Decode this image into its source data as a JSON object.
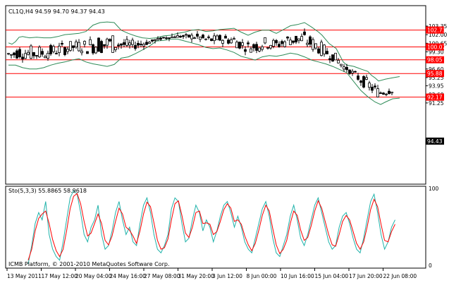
{
  "main_chart": {
    "header": "CL1Q,H4  94.59 94.70 94.37 94.43",
    "price_ticks": [
      "103.35",
      "102.00",
      "100.65",
      "99.30",
      "97.95",
      "96.60",
      "95.25",
      "93.95",
      "92.60",
      "91.25"
    ],
    "level_tags": [
      "102.73",
      "100.07",
      "98.05",
      "95.88",
      "92.17"
    ],
    "current_price": "94.43",
    "colors": {
      "background": "#ffffff",
      "candle": "#000000",
      "bands": "#2e8b57",
      "levels": "#ff0000",
      "level_tag_bg": "#ff0000",
      "current_tag_bg": "#000000"
    }
  },
  "oscillator": {
    "header": "Sto(5,3,3) 55.8865 58.9618",
    "ticks": [
      "100",
      "0"
    ],
    "colors": {
      "main_line": "#20b2aa",
      "signal_line": "#ff0000"
    }
  },
  "time_axis": [
    "13 May 2011",
    "17 May 12:00",
    "20 May 04:00",
    "24 May 16:00",
    "27 May 08:00",
    "31 May 20:00",
    "3 Jun 12:00",
    "8 Jun 00:00",
    "10 Jun 16:00",
    "15 Jun 04:00",
    "17 Jun 20:00",
    "22 Jun 08:00"
  ],
  "watermark": "ICMB Platform, © 2001-2010 MetaQuotes Software Corp.",
  "chart_data": {
    "type": "candlestick",
    "instrument": "CL1Q",
    "timeframe": "H4",
    "last_bar": {
      "open": 94.59,
      "high": 94.7,
      "low": 94.37,
      "close": 94.43
    },
    "price_range": [
      90.7,
      104.2
    ],
    "horizontal_levels": [
      102.73,
      100.07,
      98.05,
      95.88,
      92.17
    ],
    "upper_band": [
      [
        0,
        100.7
      ],
      [
        5,
        100.5
      ],
      [
        10,
        100.9
      ],
      [
        15,
        101.6
      ],
      [
        20,
        101.7
      ],
      [
        25,
        101.6
      ],
      [
        30,
        101.5
      ],
      [
        40,
        101.6
      ],
      [
        50,
        101.5
      ],
      [
        60,
        101.5
      ],
      [
        70,
        101.7
      ],
      [
        80,
        102.0
      ],
      [
        90,
        102.1
      ],
      [
        100,
        102.2
      ],
      [
        110,
        102.5
      ],
      [
        120,
        103.5
      ],
      [
        130,
        103.9
      ],
      [
        140,
        104.0
      ],
      [
        150,
        103.9
      ],
      [
        160,
        102.7
      ],
      [
        170,
        102.2
      ],
      [
        180,
        101.8
      ],
      [
        190,
        101.5
      ],
      [
        200,
        101.4
      ],
      [
        210,
        101.5
      ],
      [
        220,
        101.8
      ],
      [
        230,
        101.9
      ],
      [
        240,
        102.2
      ],
      [
        250,
        102.4
      ],
      [
        260,
        102.7
      ],
      [
        270,
        102.8
      ],
      [
        280,
        102.5
      ],
      [
        290,
        102.6
      ],
      [
        300,
        102.8
      ],
      [
        310,
        102.9
      ],
      [
        320,
        103.0
      ],
      [
        330,
        102.4
      ],
      [
        340,
        101.9
      ],
      [
        350,
        102.4
      ],
      [
        360,
        102.7
      ],
      [
        370,
        102.7
      ],
      [
        380,
        102.2
      ],
      [
        390,
        102.8
      ],
      [
        400,
        103.4
      ],
      [
        410,
        103.6
      ],
      [
        420,
        103.9
      ],
      [
        430,
        103.2
      ],
      [
        440,
        102.4
      ],
      [
        445,
        101.9
      ],
      [
        455,
        100.6
      ],
      [
        465,
        99.8
      ],
      [
        475,
        97.7
      ],
      [
        480,
        97.2
      ],
      [
        490,
        97.0
      ],
      [
        500,
        96.6
      ],
      [
        510,
        96.2
      ],
      [
        515,
        95.6
      ],
      [
        520,
        95.2
      ],
      [
        525,
        94.7
      ],
      [
        535,
        95.0
      ],
      [
        545,
        95.2
      ],
      [
        555,
        95.4
      ]
    ],
    "lower_band": [
      [
        0,
        97.2
      ],
      [
        10,
        97.2
      ],
      [
        20,
        96.8
      ],
      [
        30,
        96.6
      ],
      [
        40,
        96.6
      ],
      [
        50,
        96.8
      ],
      [
        60,
        97.2
      ],
      [
        70,
        97.5
      ],
      [
        80,
        97.7
      ],
      [
        90,
        98.0
      ],
      [
        100,
        98.2
      ],
      [
        110,
        97.7
      ],
      [
        120,
        97.4
      ],
      [
        130,
        97.2
      ],
      [
        140,
        97.0
      ],
      [
        150,
        97.3
      ],
      [
        160,
        98.3
      ],
      [
        170,
        98.5
      ],
      [
        180,
        99.0
      ],
      [
        190,
        99.6
      ],
      [
        200,
        100.2
      ],
      [
        210,
        101.0
      ],
      [
        220,
        101.1
      ],
      [
        230,
        101.3
      ],
      [
        240,
        101.3
      ],
      [
        250,
        101.0
      ],
      [
        260,
        100.7
      ],
      [
        270,
        100.4
      ],
      [
        280,
        100.0
      ],
      [
        290,
        99.8
      ],
      [
        300,
        99.9
      ],
      [
        310,
        99.6
      ],
      [
        320,
        99.2
      ],
      [
        330,
        98.6
      ],
      [
        340,
        98.3
      ],
      [
        350,
        98.0
      ],
      [
        360,
        98.5
      ],
      [
        370,
        98.7
      ],
      [
        380,
        98.6
      ],
      [
        390,
        98.8
      ],
      [
        400,
        99.1
      ],
      [
        410,
        98.9
      ],
      [
        420,
        98.5
      ],
      [
        430,
        98.0
      ],
      [
        440,
        97.7
      ],
      [
        450,
        97.4
      ],
      [
        460,
        97.0
      ],
      [
        470,
        96.5
      ],
      [
        480,
        96.0
      ],
      [
        490,
        94.6
      ],
      [
        500,
        93.2
      ],
      [
        510,
        92.2
      ],
      [
        515,
        91.8
      ],
      [
        520,
        91.4
      ],
      [
        528,
        91.0
      ],
      [
        535,
        91.4
      ],
      [
        545,
        91.9
      ],
      [
        555,
        92.0
      ]
    ],
    "stochastic_main": [
      0,
      25,
      55,
      70,
      60,
      85,
      40,
      20,
      10,
      5,
      30,
      60,
      90,
      100,
      95,
      70,
      40,
      30,
      50,
      60,
      80,
      40,
      20,
      25,
      45,
      70,
      85,
      60,
      40,
      50,
      30,
      25,
      55,
      80,
      90,
      70,
      40,
      20,
      15,
      25,
      40,
      75,
      90,
      85,
      55,
      30,
      35,
      60,
      80,
      70,
      45,
      60,
      50,
      30,
      45,
      65,
      80,
      85,
      70,
      50,
      65,
      50,
      30,
      20,
      15,
      35,
      55,
      75,
      85,
      65,
      35,
      15,
      10,
      25,
      40,
      65,
      80,
      60,
      35,
      25,
      40,
      60,
      80,
      90,
      70,
      50,
      30,
      20,
      25,
      50,
      65,
      70,
      55,
      35,
      20,
      15,
      35,
      60,
      85,
      95,
      70,
      40,
      20,
      30,
      50,
      60
    ],
    "stochastic_signal": [
      5,
      20,
      45,
      62,
      68,
      72,
      55,
      33,
      18,
      10,
      20,
      45,
      75,
      92,
      96,
      82,
      58,
      38,
      42,
      55,
      68,
      55,
      32,
      26,
      38,
      58,
      76,
      68,
      50,
      46,
      38,
      28,
      45,
      68,
      84,
      78,
      56,
      32,
      20,
      22,
      34,
      60,
      82,
      86,
      66,
      42,
      36,
      50,
      70,
      72,
      55,
      56,
      54,
      40,
      44,
      58,
      74,
      82,
      76,
      58,
      60,
      54,
      38,
      26,
      18,
      28,
      46,
      66,
      80,
      72,
      48,
      26,
      14,
      20,
      32,
      55,
      72,
      66,
      46,
      32,
      36,
      52,
      72,
      86,
      76,
      58,
      40,
      26,
      24,
      40,
      58,
      66,
      60,
      44,
      28,
      20,
      30,
      50,
      74,
      88,
      78,
      54,
      32,
      30,
      44,
      54
    ]
  }
}
